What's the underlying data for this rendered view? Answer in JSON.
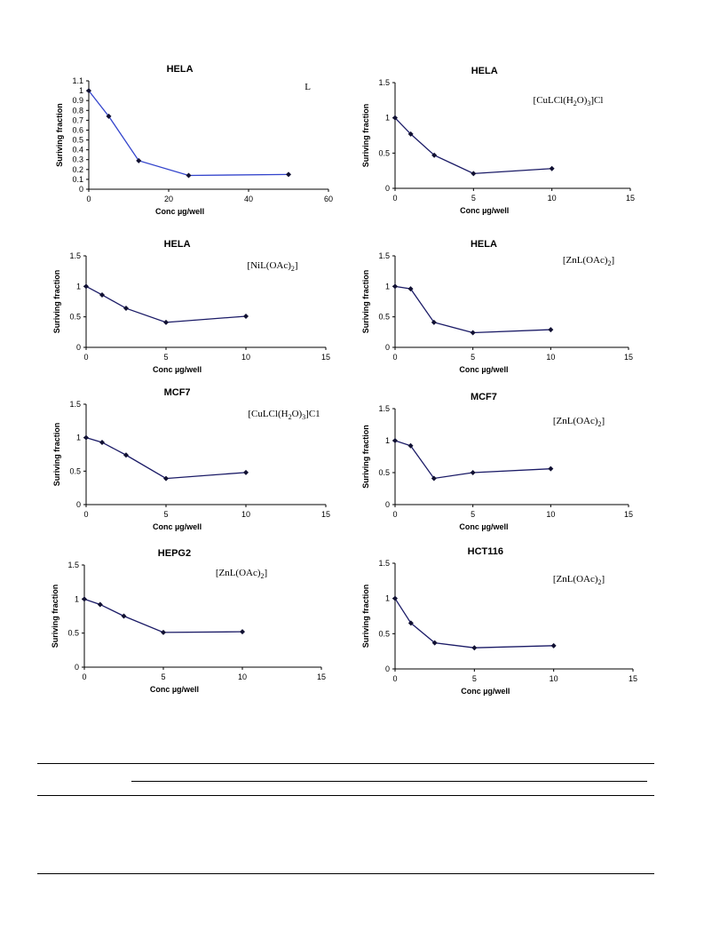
{
  "chart_data": [
    {
      "type": "line",
      "title": "HELA",
      "annotation": "L",
      "annotation_parts": [
        {
          "t": "L",
          "sub": false
        }
      ],
      "xlabel": "Conc µg/well",
      "ylabel": "Suriving fraction",
      "xlim": [
        0,
        60
      ],
      "ylim": [
        0,
        1.1
      ],
      "xticks": [
        0,
        20,
        40,
        60
      ],
      "yticks": [
        0,
        0.1,
        0.2,
        0.3,
        0.4,
        0.5,
        0.6,
        0.7,
        0.8,
        0.9,
        1,
        1.1
      ],
      "ytick_labels": [
        "0",
        "0.1",
        "0.2",
        "0.3",
        "0.4",
        "0.5",
        "0.6",
        "0.7",
        "0.8",
        "0.9",
        "1",
        "1.1"
      ],
      "x": [
        0,
        5,
        12.5,
        25,
        50
      ],
      "y": [
        1.0,
        0.74,
        0.29,
        0.14,
        0.15
      ],
      "line_color": "#3344cc"
    },
    {
      "type": "line",
      "title": "HELA",
      "annotation": "[CuLCl(H2O)3]Cl",
      "annotation_parts": [
        {
          "t": "[CuLCl(H",
          "sub": false
        },
        {
          "t": "2",
          "sub": true
        },
        {
          "t": "O)",
          "sub": false
        },
        {
          "t": "3",
          "sub": true
        },
        {
          "t": "]Cl",
          "sub": false
        }
      ],
      "xlabel": "Conc µg/well",
      "ylabel": "Suriving fraction",
      "xlim": [
        0,
        15
      ],
      "ylim": [
        0,
        1.5
      ],
      "xticks": [
        0,
        5,
        10,
        15
      ],
      "yticks": [
        0,
        0.5,
        1,
        1.5
      ],
      "ytick_labels": [
        "0",
        "0.5",
        "1",
        "1.5"
      ],
      "x": [
        0,
        1,
        2.5,
        5,
        10
      ],
      "y": [
        1.0,
        0.77,
        0.47,
        0.21,
        0.28
      ],
      "line_color": "#1a1a66"
    },
    {
      "type": "line",
      "title": "HELA",
      "annotation": "[NiL(OAc)2]",
      "annotation_parts": [
        {
          "t": "[NiL(OAc)",
          "sub": false
        },
        {
          "t": "2",
          "sub": true
        },
        {
          "t": "]",
          "sub": false
        }
      ],
      "xlabel": "Conc µg/well",
      "ylabel": "Suriving fraction",
      "xlim": [
        0,
        15
      ],
      "ylim": [
        0,
        1.5
      ],
      "xticks": [
        0,
        5,
        10,
        15
      ],
      "yticks": [
        0,
        0.5,
        1,
        1.5
      ],
      "ytick_labels": [
        "0",
        "0.5",
        "1",
        "1.5"
      ],
      "x": [
        0,
        1,
        2.5,
        5,
        10
      ],
      "y": [
        1.0,
        0.86,
        0.64,
        0.41,
        0.51
      ],
      "line_color": "#1a1a66"
    },
    {
      "type": "line",
      "title": "HELA",
      "annotation": "[ZnL(OAc)2]",
      "annotation_parts": [
        {
          "t": "[ZnL(OAc)",
          "sub": false
        },
        {
          "t": "2",
          "sub": true
        },
        {
          "t": "]",
          "sub": false
        }
      ],
      "xlabel": "Conc µg/well",
      "ylabel": "Suriving fraction",
      "xlim": [
        0,
        15
      ],
      "ylim": [
        0,
        1.5
      ],
      "xticks": [
        0,
        5,
        10,
        15
      ],
      "yticks": [
        0,
        0.5,
        1,
        1.5
      ],
      "ytick_labels": [
        "0",
        "0.5",
        "1",
        "1.5"
      ],
      "x": [
        0,
        1,
        2.5,
        5,
        10
      ],
      "y": [
        1.0,
        0.96,
        0.41,
        0.24,
        0.29
      ],
      "line_color": "#1a1a66"
    },
    {
      "type": "line",
      "title": "MCF7",
      "annotation": "[CuLCl(H2O)3]C1",
      "annotation_parts": [
        {
          "t": "[CuLCl(H",
          "sub": false
        },
        {
          "t": "2",
          "sub": true
        },
        {
          "t": "O)",
          "sub": false
        },
        {
          "t": "3",
          "sub": true
        },
        {
          "t": "]C1",
          "sub": false
        }
      ],
      "xlabel": "Conc µg/well",
      "ylabel": "Suriving fraction",
      "xlim": [
        0,
        15
      ],
      "ylim": [
        0,
        1.5
      ],
      "xticks": [
        0,
        5,
        10,
        15
      ],
      "yticks": [
        0,
        0.5,
        1,
        1.5
      ],
      "ytick_labels": [
        "0",
        "0.5",
        "1",
        "1.5"
      ],
      "x": [
        0,
        1,
        2.5,
        5,
        10
      ],
      "y": [
        1.0,
        0.93,
        0.74,
        0.39,
        0.48
      ],
      "line_color": "#1a1a66"
    },
    {
      "type": "line",
      "title": "MCF7",
      "annotation": "[ZnL(OAc)2]",
      "annotation_parts": [
        {
          "t": "[ZnL(OAc)",
          "sub": false
        },
        {
          "t": "2",
          "sub": true
        },
        {
          "t": "]",
          "sub": false
        }
      ],
      "xlabel": "Conc µg/well",
      "ylabel": "Suriving fraction",
      "xlim": [
        0,
        15
      ],
      "ylim": [
        0,
        1.5
      ],
      "xticks": [
        0,
        5,
        10,
        15
      ],
      "yticks": [
        0,
        0.5,
        1,
        1.5
      ],
      "ytick_labels": [
        "0",
        "0.5",
        "1",
        "1.5"
      ],
      "x": [
        0,
        1,
        2.5,
        5,
        10
      ],
      "y": [
        1.0,
        0.92,
        0.41,
        0.5,
        0.56
      ],
      "line_color": "#1a1a66"
    },
    {
      "type": "line",
      "title": "HEPG2",
      "annotation": "[ZnL(OAc)2]",
      "annotation_parts": [
        {
          "t": "[ZnL(OAc)",
          "sub": false
        },
        {
          "t": "2",
          "sub": true
        },
        {
          "t": "]",
          "sub": false
        }
      ],
      "xlabel": "Conc µg/well",
      "ylabel": "Suriving fraction",
      "xlim": [
        0,
        15
      ],
      "ylim": [
        0,
        1.5
      ],
      "xticks": [
        0,
        5,
        10,
        15
      ],
      "yticks": [
        0,
        0.5,
        1,
        1.5
      ],
      "ytick_labels": [
        "0",
        "0.5",
        "1",
        "1.5"
      ],
      "x": [
        0,
        1,
        2.5,
        5,
        10
      ],
      "y": [
        1.0,
        0.92,
        0.75,
        0.51,
        0.52
      ],
      "line_color": "#1a1a66"
    },
    {
      "type": "line",
      "title": "HCT116",
      "annotation": "[ZnL(OAc)2]",
      "annotation_parts": [
        {
          "t": "[ZnL(OAc)",
          "sub": false
        },
        {
          "t": "2",
          "sub": true
        },
        {
          "t": "]",
          "sub": false
        }
      ],
      "xlabel": "Conc µg/well",
      "ylabel": "Suriving fraction",
      "xlim": [
        0,
        15
      ],
      "ylim": [
        0,
        1.5
      ],
      "xticks": [
        0,
        5,
        10,
        15
      ],
      "yticks": [
        0,
        0.5,
        1,
        1.5
      ],
      "ytick_labels": [
        "0",
        "0.5",
        "1",
        "1.5"
      ],
      "x": [
        0,
        1,
        2.5,
        5,
        10
      ],
      "y": [
        1.0,
        0.65,
        0.37,
        0.3,
        0.33
      ],
      "line_color": "#1a1a66"
    }
  ]
}
